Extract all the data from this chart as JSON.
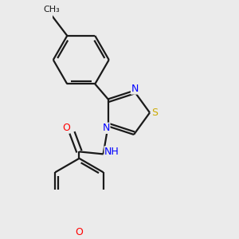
{
  "background_color": "#ebebeb",
  "bond_color": "#1a1a1a",
  "atom_colors": {
    "N": "#0000ff",
    "S": "#ccaa00",
    "O": "#ff0000",
    "C": "#1a1a1a"
  },
  "figsize": [
    3.0,
    3.0
  ],
  "dpi": 100,
  "bond_lw": 1.6
}
